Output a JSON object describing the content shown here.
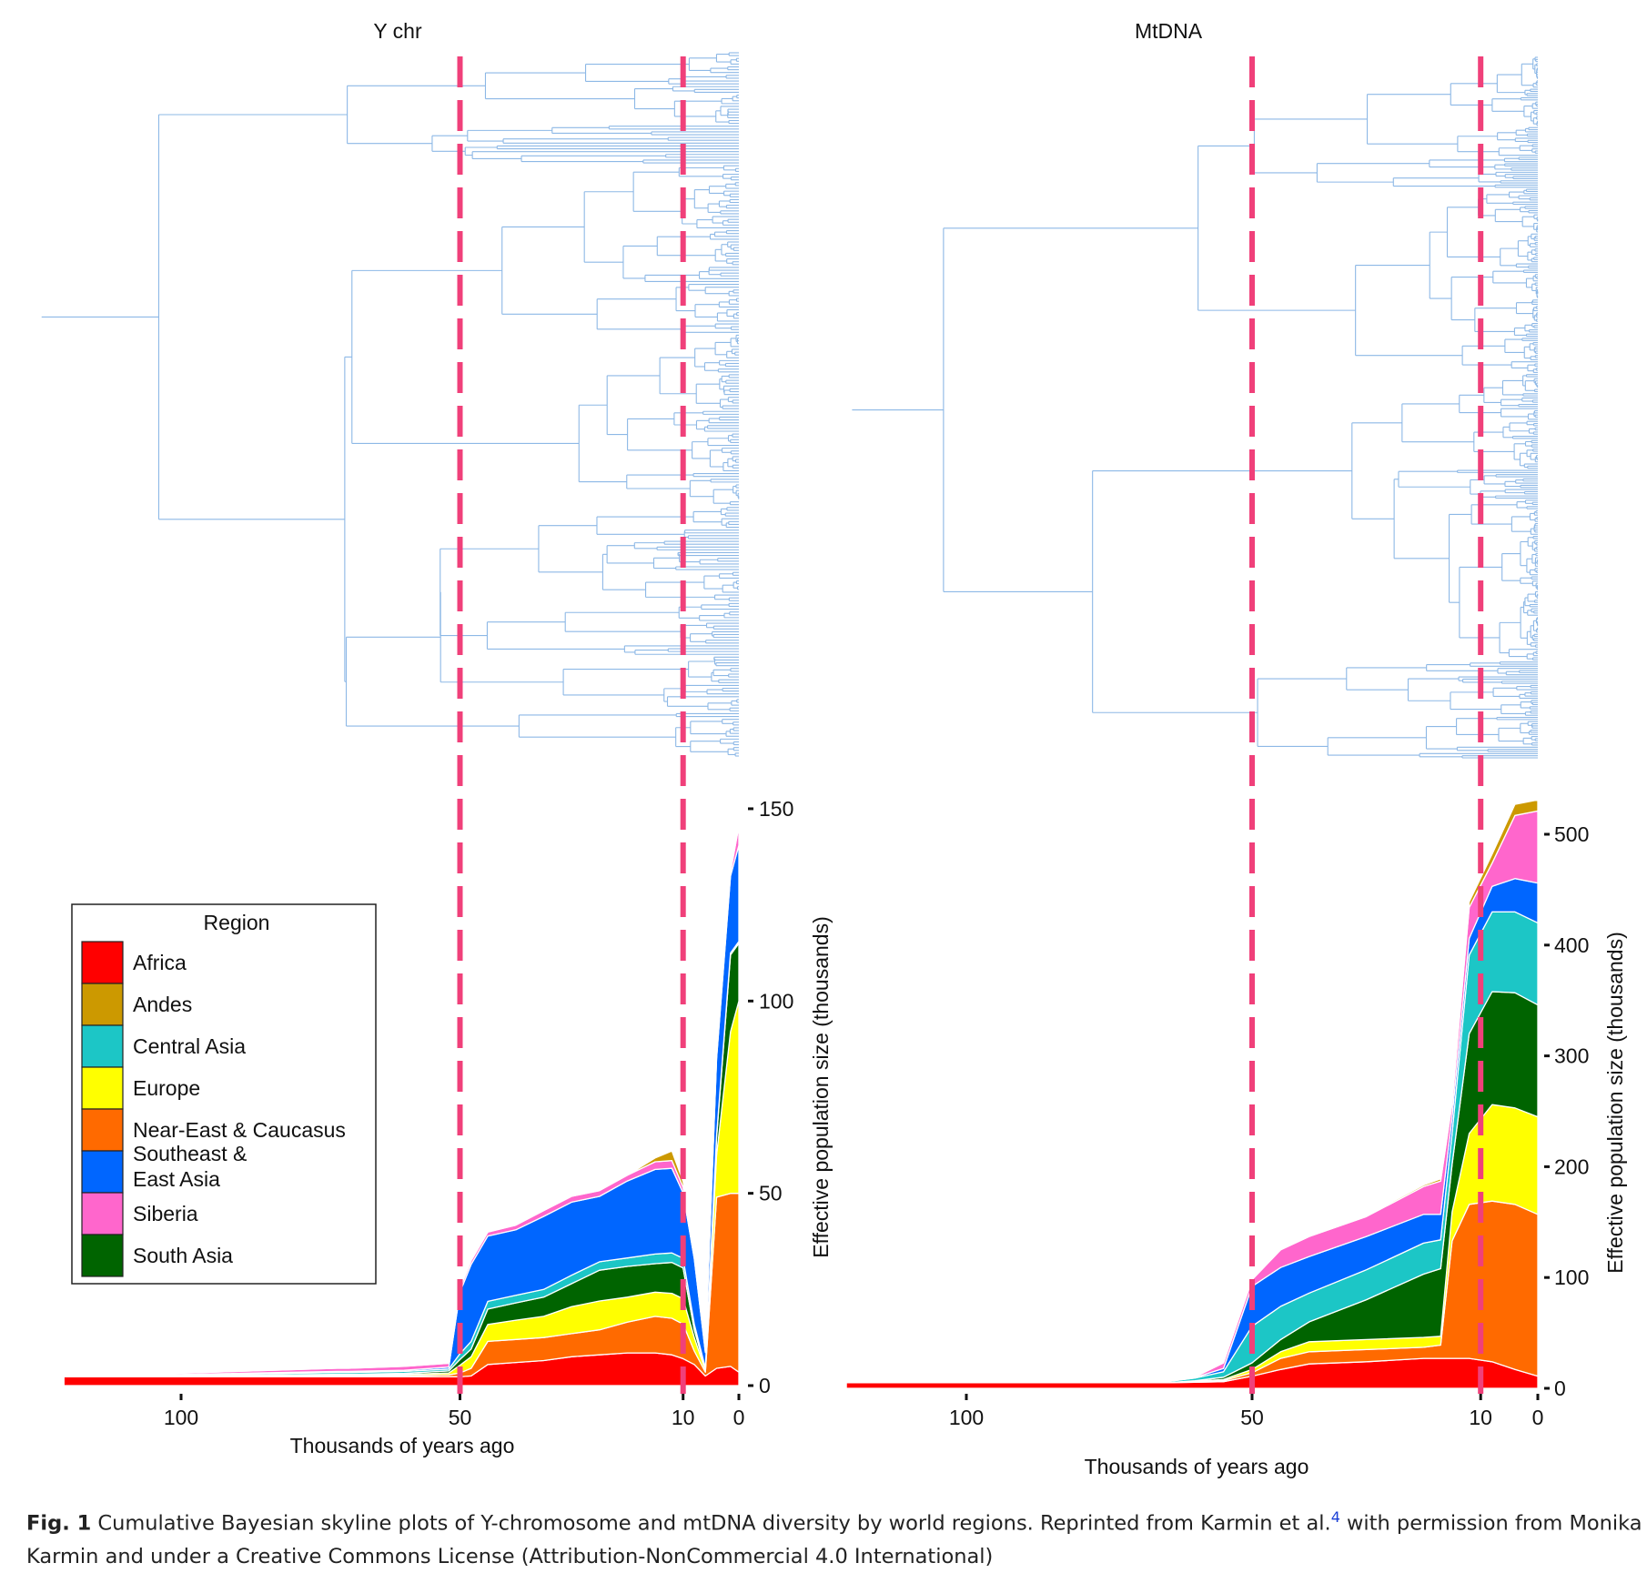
{
  "chart_data": [
    {
      "type": "area",
      "stacked": true,
      "title": "Y chr",
      "xlabel": "Thousands of years ago",
      "ylabel": "Effective population size (thousands)",
      "x_reversed": true,
      "xlim": [
        125,
        0
      ],
      "ylim": [
        0,
        150
      ],
      "xticks": [
        100,
        50,
        10,
        0
      ],
      "yticks": [
        0,
        50,
        100,
        150
      ],
      "reference_lines_x": [
        50,
        10
      ],
      "x": [
        121,
        72,
        70,
        60,
        52,
        50,
        48,
        45,
        40,
        35,
        30,
        25,
        20,
        15,
        12,
        10,
        8,
        6,
        4,
        1.5,
        0
      ],
      "series": [
        {
          "name": "Africa",
          "values": [
            2.3,
            2.3,
            2.3,
            2.3,
            2.3,
            2.3,
            2.5,
            5.5,
            6,
            6.5,
            7.5,
            8,
            8.5,
            8.5,
            8,
            7,
            5.5,
            2.5,
            4.5,
            5,
            3.5
          ]
        },
        {
          "name": "Near-East & Caucasus",
          "values": [
            0,
            0.2,
            0.2,
            0.3,
            0.5,
            1,
            2,
            6,
            6,
            6,
            6,
            6.5,
            8,
            9.5,
            9.5,
            9,
            3.5,
            1,
            44.5,
            45,
            46.5
          ]
        },
        {
          "name": "Europe",
          "values": [
            0,
            0.2,
            0.2,
            0.3,
            0.5,
            2,
            3,
            4.4,
            5,
            5.5,
            7,
            7.5,
            6.5,
            6.3,
            6.5,
            6.6,
            3.5,
            0.5,
            11,
            42,
            50
          ]
        },
        {
          "name": "South Asia",
          "values": [
            0,
            0.2,
            0.2,
            0.3,
            0.5,
            1.5,
            2,
            4,
            4.5,
            5,
            6,
            8,
            8,
            7.4,
            8,
            8,
            2,
            0.3,
            4.5,
            20,
            15
          ]
        },
        {
          "name": "Central Asia",
          "values": [
            0,
            0.5,
            0.5,
            0.5,
            0.5,
            1.5,
            2,
            2,
            2,
            2,
            2.2,
            2.2,
            2.2,
            2.5,
            2.5,
            2.5,
            1.5,
            0.3,
            0.5,
            0.5,
            0.5
          ]
        },
        {
          "name": "Southeast & East Asia",
          "values": [
            0,
            0.3,
            0.3,
            0.3,
            0.5,
            16,
            20,
            17,
            17,
            19,
            19,
            17,
            20,
            22,
            22,
            17,
            17,
            4,
            20,
            20,
            25
          ]
        },
        {
          "name": "Siberia",
          "values": [
            0,
            0.8,
            0.8,
            1,
            1,
            1,
            1,
            1,
            1.2,
            1.5,
            1.5,
            1.5,
            1.5,
            2,
            2,
            1.5,
            1,
            0.3,
            0.5,
            1,
            5
          ]
        },
        {
          "name": "Andes",
          "values": [
            0,
            0,
            0,
            0,
            0,
            0,
            0,
            0,
            0,
            0,
            0,
            0,
            0,
            1,
            2.5,
            1.5,
            0.5,
            0,
            0,
            0,
            0
          ]
        }
      ]
    },
    {
      "type": "area",
      "stacked": true,
      "title": "MtDNA",
      "xlabel": "Thousands of years ago",
      "ylabel": "Effective population size (thousands)",
      "x_reversed": true,
      "xlim": [
        120,
        0
      ],
      "ylim": [
        0,
        530
      ],
      "xticks": [
        100,
        50,
        10,
        0
      ],
      "yticks": [
        0,
        100,
        200,
        300,
        400,
        500
      ],
      "reference_lines_x": [
        50,
        10
      ],
      "x": [
        121,
        80,
        70,
        65,
        60,
        55,
        50,
        45,
        40,
        30,
        20,
        17,
        15,
        12,
        8,
        4,
        0
      ],
      "series": [
        {
          "name": "Africa",
          "values": [
            5,
            5,
            5,
            5,
            5.5,
            6,
            11,
            17,
            22,
            24,
            27,
            27,
            27,
            27,
            24,
            17,
            11
          ]
        },
        {
          "name": "Near-East & Caucasus",
          "values": [
            0,
            0,
            0,
            0,
            0.5,
            1,
            3,
            10,
            11,
            11,
            10,
            12,
            106,
            139,
            145,
            149,
            146
          ]
        },
        {
          "name": "Europe",
          "values": [
            0,
            0,
            0,
            0,
            0.3,
            1,
            3,
            6,
            9,
            9,
            9,
            8,
            26,
            64,
            87,
            87,
            88
          ]
        },
        {
          "name": "South Asia",
          "values": [
            0,
            0,
            0,
            0,
            0.5,
            2,
            6,
            11,
            18,
            36,
            57,
            61,
            43,
            90,
            102,
            104,
            101
          ]
        },
        {
          "name": "Central Asia",
          "values": [
            0,
            0,
            0,
            1,
            2.5,
            5,
            33,
            30,
            26,
            27,
            28,
            26,
            28,
            71,
            72,
            73,
            74
          ]
        },
        {
          "name": "Southeast & East Asia",
          "values": [
            0,
            0,
            0,
            0,
            0.5,
            3,
            36,
            35,
            33,
            30,
            26,
            23,
            15,
            15,
            23,
            30,
            36
          ]
        },
        {
          "name": "Siberia",
          "values": [
            0,
            0,
            0,
            0,
            0.5,
            5,
            6,
            16,
            18,
            18,
            25,
            30,
            12,
            28,
            21,
            57,
            65
          ]
        },
        {
          "name": "Andes",
          "values": [
            0,
            0,
            0,
            0,
            0,
            0.5,
            1,
            1,
            1,
            1,
            1.5,
            2,
            3,
            5,
            8,
            10,
            10
          ]
        }
      ]
    }
  ],
  "legend": {
    "title": "Region",
    "placement": "left",
    "items": [
      {
        "label": "Africa",
        "color": "#ff0000"
      },
      {
        "label": "Andes",
        "color": "#cc9900"
      },
      {
        "label": "Central Asia",
        "color": "#1cc6c6"
      },
      {
        "label": "Europe",
        "color": "#ffff00"
      },
      {
        "label": "Near-East & Caucasus",
        "color": "#ff6a00"
      },
      {
        "label_line1": "Southeast &",
        "label_line2": "East Asia",
        "color": "#0066ff"
      },
      {
        "label": "Siberia",
        "color": "#ff66cc"
      },
      {
        "label": "South Asia",
        "color": "#006400"
      }
    ]
  },
  "colors": {
    "Africa": "#ff0000",
    "Andes": "#cc9900",
    "Central Asia": "#1cc6c6",
    "Europe": "#ffff00",
    "Near-East & Caucasus": "#ff6a00",
    "Southeast & East Asia": "#0066ff",
    "Siberia": "#ff66cc",
    "South Asia": "#006400",
    "tree": "#8db8e6",
    "reference_line": "#f0407a"
  },
  "caption": {
    "label": "Fig. 1",
    "text1": " Cumulative Bayesian skyline plots of Y-chromosome and mtDNA diversity by world regions. Reprinted from Karmin et al.",
    "ref": "4",
    "text2": " with permission from Monika Karmin and under a Creative Commons License (Attribution-NonCommercial 4.0 International)"
  }
}
